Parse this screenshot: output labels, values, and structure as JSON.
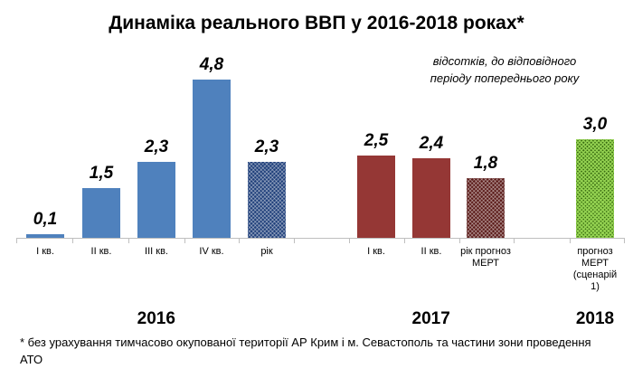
{
  "chart_data": {
    "type": "bar",
    "title": "Динаміка реального ВВП у 2016-2018 роках*",
    "subtitle": "відсотків, до відповідного періоду попереднього року",
    "groups": [
      {
        "name": "2016",
        "categories": [
          "І кв.",
          "ІІ кв.",
          "ІІІ кв.",
          "ІV кв.",
          "рік"
        ],
        "values": [
          0.1,
          1.5,
          2.3,
          4.8,
          2.3
        ],
        "value_labels": [
          "0,1",
          "1,5",
          "2,3",
          "4,8",
          "2,3"
        ],
        "colors": [
          "#4f81bd",
          "#4f81bd",
          "#4f81bd",
          "#4f81bd",
          "#1f3f7a"
        ],
        "hatched": [
          false,
          false,
          false,
          false,
          true
        ]
      },
      {
        "name": "2017",
        "categories": [
          "І кв.",
          "ІІ кв.",
          "рік прогноз МЕРТ"
        ],
        "values": [
          2.5,
          2.4,
          1.8
        ],
        "value_labels": [
          "2,5",
          "2,4",
          "1,8"
        ],
        "colors": [
          "#953735",
          "#953735",
          "#5a1a18"
        ],
        "hatched": [
          false,
          false,
          true
        ]
      },
      {
        "name": "2018",
        "categories": [
          "прогноз МЕРТ (сценарій 1)"
        ],
        "values": [
          3.0
        ],
        "value_labels": [
          "3,0"
        ],
        "colors": [
          "#3b6e12"
        ],
        "hatched": [
          true
        ]
      }
    ],
    "footnote": "* без урахування тимчасово окупованої території АР Крим і м. Севастополь та частини зони проведення АТО"
  }
}
